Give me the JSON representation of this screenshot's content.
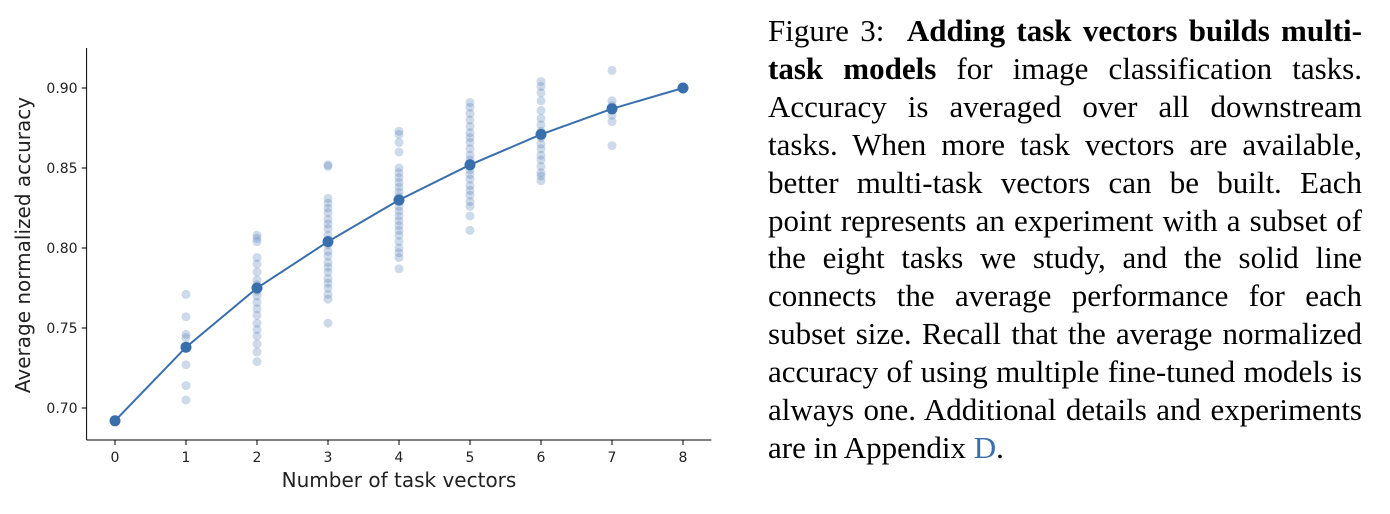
{
  "chart_data": {
    "type": "scatter",
    "xlabel": "Number of task vectors",
    "ylabel": "Average normalized accuracy",
    "xlim": [
      -0.4,
      8.4
    ],
    "ylim": [
      0.68,
      0.925
    ],
    "xticks": [
      0,
      1,
      2,
      3,
      4,
      5,
      6,
      7,
      8
    ],
    "yticks": [
      {
        "value": 0.7,
        "label": "0.70"
      },
      0.75,
      {
        "value": 0.8,
        "label": "0.80"
      },
      0.85,
      {
        "value": 0.9,
        "label": "0.90"
      }
    ],
    "series": [
      {
        "type": "scatter",
        "color": "#4a7ab5",
        "x": [
          1,
          1,
          1,
          1,
          1,
          1,
          1,
          1,
          2,
          2,
          2,
          2,
          2,
          2,
          2,
          2,
          2,
          2,
          2,
          2,
          2,
          2,
          2,
          2,
          2,
          2,
          2,
          3,
          3,
          3,
          3,
          3,
          3,
          3,
          3,
          3,
          3,
          3,
          3,
          3,
          3,
          3,
          3,
          3,
          3,
          3,
          3,
          3,
          3,
          3,
          4,
          4,
          4,
          4,
          4,
          4,
          4,
          4,
          4,
          4,
          4,
          4,
          4,
          4,
          4,
          4,
          4,
          4,
          4,
          4,
          4,
          4,
          4,
          4,
          5,
          5,
          5,
          5,
          5,
          5,
          5,
          5,
          5,
          5,
          5,
          5,
          5,
          5,
          5,
          5,
          5,
          5,
          5,
          5,
          5,
          5,
          6,
          6,
          6,
          6,
          6,
          6,
          6,
          6,
          6,
          6,
          6,
          6,
          6,
          6,
          6,
          6,
          6,
          7,
          7,
          7,
          7,
          7,
          7,
          7
        ],
        "values": [
          0.771,
          0.757,
          0.746,
          0.744,
          0.738,
          0.727,
          0.714,
          0.705,
          0.808,
          0.806,
          0.804,
          0.794,
          0.79,
          0.785,
          0.78,
          0.777,
          0.773,
          0.77,
          0.766,
          0.762,
          0.758,
          0.753,
          0.749,
          0.745,
          0.74,
          0.735,
          0.729,
          0.852,
          0.851,
          0.831,
          0.828,
          0.825,
          0.822,
          0.818,
          0.815,
          0.812,
          0.808,
          0.805,
          0.802,
          0.798,
          0.795,
          0.791,
          0.788,
          0.785,
          0.781,
          0.778,
          0.775,
          0.771,
          0.768,
          0.753,
          0.873,
          0.871,
          0.866,
          0.86,
          0.85,
          0.847,
          0.844,
          0.841,
          0.838,
          0.835,
          0.832,
          0.829,
          0.826,
          0.823,
          0.82,
          0.817,
          0.814,
          0.811,
          0.808,
          0.804,
          0.8,
          0.797,
          0.794,
          0.787,
          0.891,
          0.888,
          0.884,
          0.88,
          0.876,
          0.872,
          0.869,
          0.866,
          0.862,
          0.858,
          0.855,
          0.852,
          0.849,
          0.846,
          0.843,
          0.839,
          0.836,
          0.833,
          0.829,
          0.826,
          0.82,
          0.811,
          0.904,
          0.901,
          0.897,
          0.892,
          0.886,
          0.881,
          0.877,
          0.873,
          0.869,
          0.865,
          0.862,
          0.858,
          0.855,
          0.851,
          0.847,
          0.845,
          0.842,
          0.911,
          0.892,
          0.889,
          0.886,
          0.883,
          0.879,
          0.864
        ]
      },
      {
        "type": "line",
        "color": "#3a6fad",
        "x": [
          0,
          1,
          2,
          3,
          4,
          5,
          6,
          7,
          8
        ],
        "values": [
          0.692,
          0.738,
          0.775,
          0.804,
          0.83,
          0.852,
          0.871,
          0.887,
          0.9
        ]
      }
    ]
  },
  "caption": {
    "label": "Figure 3:",
    "bold": "Adding task vectors builds multi-task models",
    "text": "for image classification tasks. Accuracy is averaged over all downstream tasks. When more task vectors are available, better multi-task vectors can be built. Each point represents an experiment with a subset of the eight tasks we study, and the solid line connects the average performance for each subset size. Recall that the average normalized accuracy of using multiple fine-tuned models is always one. Additional details and experiments are in Appendix",
    "link": "D",
    "end": "."
  }
}
